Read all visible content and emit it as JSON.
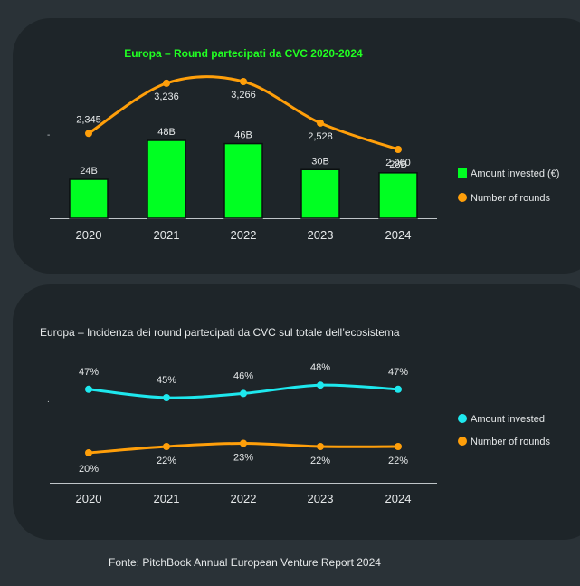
{
  "charts": [
    {
      "chart_data": {
        "type": "bar",
        "title": "Europa – Round partecipati da CVC 2020-2024",
        "categories": [
          "2020",
          "2021",
          "2022",
          "2023",
          "2024"
        ],
        "series": [
          {
            "name": "Amount invested (€)",
            "type": "bar",
            "values": [
              24,
              48,
              46,
              30,
              28
            ],
            "labels": [
              "24B",
              "48B",
              "46B",
              "30B",
              "28B"
            ],
            "color": "#00ff22"
          },
          {
            "name": "Number of rounds",
            "type": "line",
            "values": [
              2345,
              3236,
              3266,
              2528,
              2060
            ],
            "labels": [
              "2,345",
              "3,236",
              "3,266",
              "2,528",
              "2,060"
            ],
            "color": "#ff9f0a"
          }
        ],
        "ylim_bars": [
          0,
          55
        ],
        "ylim_line": [
          1600,
          3500
        ],
        "legend": "right",
        "grid": false,
        "title_color": "#21ff22"
      }
    },
    {
      "chart_data": {
        "type": "line",
        "title": "Europa – Incidenza dei round partecipati da CVC sul totale dell’ecosistema",
        "categories": [
          "2020",
          "2021",
          "2022",
          "2023",
          "2024"
        ],
        "series": [
          {
            "name": "Amount invested",
            "values": [
              47,
              45,
              46,
              48,
              47
            ],
            "labels": [
              "47%",
              "45%",
              "46%",
              "48%",
              "47%"
            ],
            "color": "#1ee8ee"
          },
          {
            "name": "Number of rounds",
            "values": [
              20,
              22,
              23,
              22,
              22
            ],
            "labels": [
              "20%",
              "22%",
              "23%",
              "22%",
              "22%"
            ],
            "color": "#ff9f0a"
          }
        ],
        "ylim": [
          0,
          60
        ],
        "legend": "right",
        "grid": false
      }
    }
  ],
  "source": "Fonte: PitchBook Annual European Venture Report 2024"
}
